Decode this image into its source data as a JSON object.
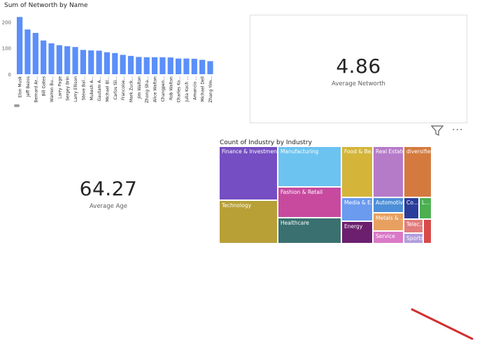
{
  "bar_visual": {
    "title": "Sum of Networth by Name"
  },
  "card_networth": {
    "value": "4.86",
    "label": "Average Networth"
  },
  "card_age": {
    "value": "64.27",
    "label": "Average Age"
  },
  "toolbar": {
    "filter_icon": "filter-icon",
    "more_icon": "more-options-icon",
    "more_label": "···"
  },
  "treemap": {
    "title": "Count of Industry by Industry",
    "tiles": [
      {
        "label": "Finance & Investments",
        "color": "#744EC2"
      },
      {
        "label": "Technology",
        "color": "#B8A037"
      },
      {
        "label": "Manufacturing",
        "color": "#6CC3F0"
      },
      {
        "label": "Fashion & Retail",
        "color": "#C74A9F"
      },
      {
        "label": "Healthcare",
        "color": "#3A7070"
      },
      {
        "label": "Food & Be...",
        "color": "#D4B53A"
      },
      {
        "label": "Media & E...",
        "color": "#6B9BEF"
      },
      {
        "label": "Energy",
        "color": "#6C1F6E"
      },
      {
        "label": "Real Estate",
        "color": "#B57BC9"
      },
      {
        "label": "Automotive",
        "color": "#4C8FD8"
      },
      {
        "label": "Metals & ...",
        "color": "#E8A060"
      },
      {
        "label": "Service",
        "color": "#D979C7"
      },
      {
        "label": "diversified",
        "color": "#D47A3F"
      },
      {
        "label": "Co...",
        "color": "#2B3D9A"
      },
      {
        "label": "L...",
        "color": "#4CAF50"
      },
      {
        "label": "Telec...",
        "color": "#E27C7C"
      },
      {
        "label": "",
        "color": "#D94A4A"
      },
      {
        "label": "Sports",
        "color": "#B39DDB"
      }
    ]
  },
  "chart_data": {
    "type": "bar",
    "title": "Sum of Networth by Name",
    "categories": [
      "Elon Musk",
      "Jeff Bezos",
      "Bernard Ar...",
      "Bill Gates",
      "Warren Bu...",
      "Larry Page",
      "Sergey Brin",
      "Larry Ellison",
      "Steve Bal...",
      "Mukesh A...",
      "Gautam A...",
      "Michael Bl...",
      "Carlos Sli...",
      "Francoise...",
      "Mark Zuck...",
      "Jim Walton",
      "Zhong Sha...",
      "Alice Walton",
      "Changpen...",
      "Rob Walton",
      "Charles Ko...",
      "Julia Koch ...",
      "Amancio ...",
      "Michael Dell",
      "Zhang Yim..."
    ],
    "values": [
      219,
      171,
      158,
      129,
      118,
      111,
      107,
      104,
      93,
      91,
      90,
      84,
      81,
      74,
      70,
      66,
      65,
      65,
      65,
      64,
      60,
      60,
      59,
      55,
      50
    ],
    "yticks": [
      "0",
      "100",
      "200"
    ],
    "ylim": [
      0,
      225
    ],
    "color": "#5B8FF9",
    "grid": false
  }
}
